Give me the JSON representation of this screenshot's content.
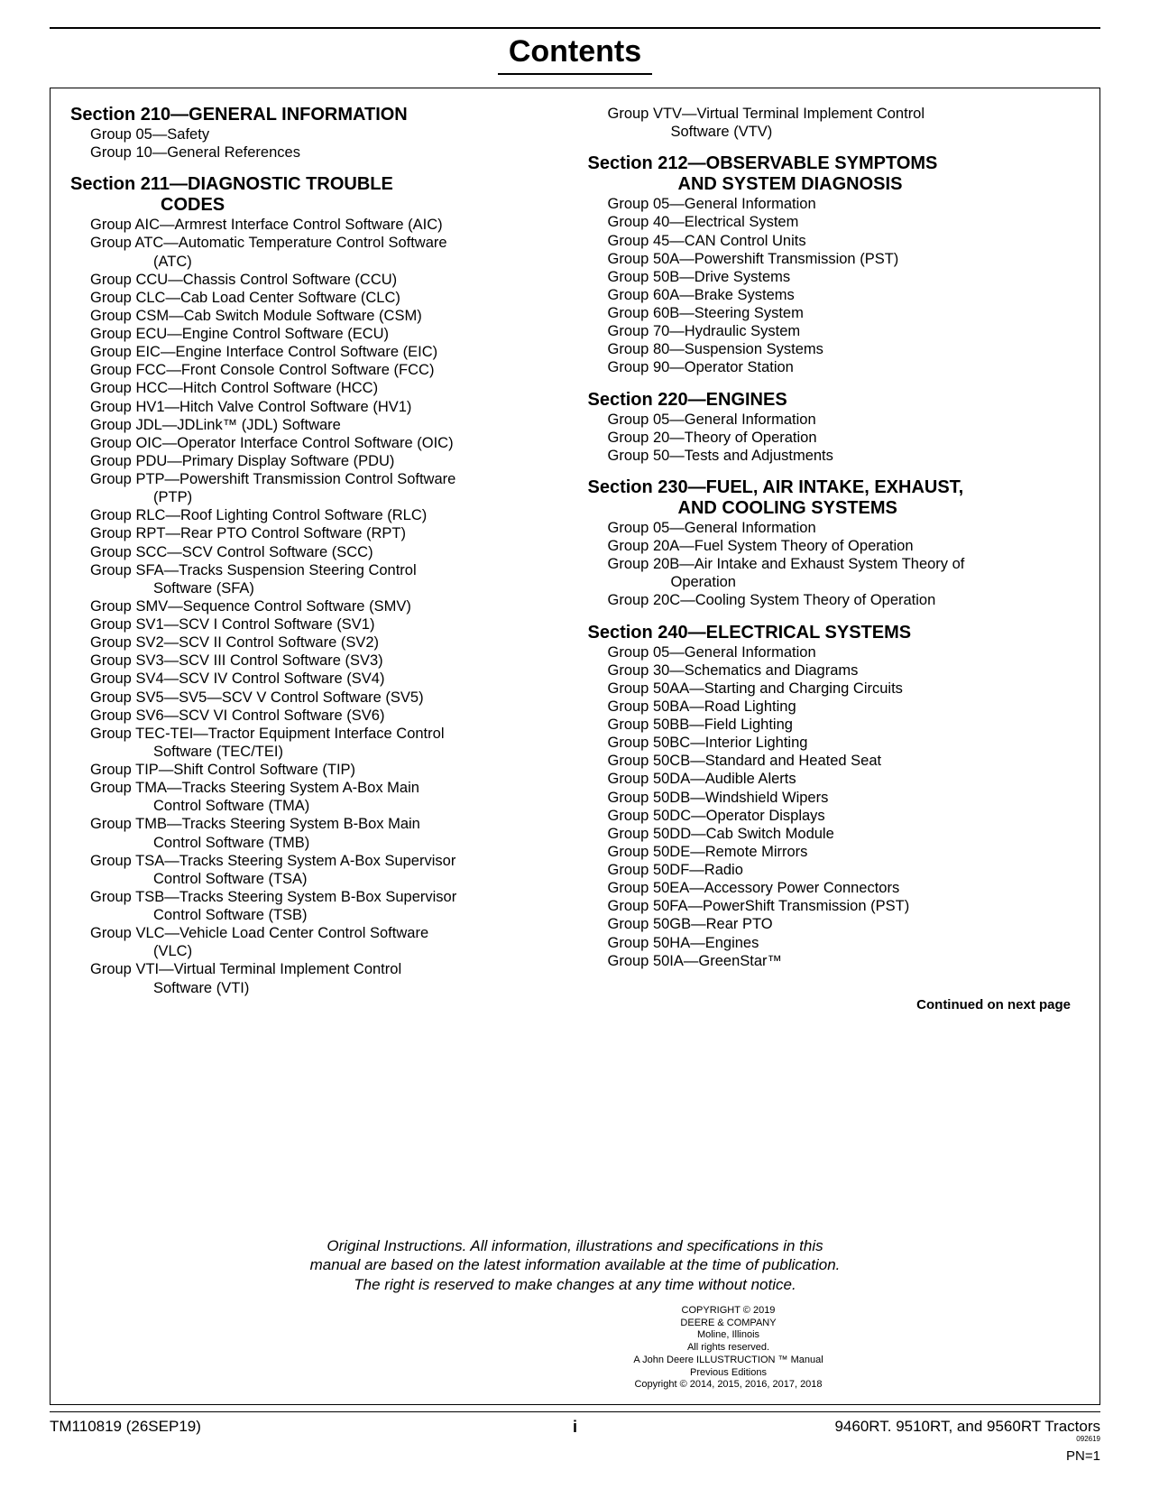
{
  "title": "Contents",
  "left": {
    "s210": {
      "head": "Section 210—GENERAL INFORMATION",
      "g": [
        "Group 05—Safety",
        "Group 10—General References"
      ]
    },
    "s211": {
      "head1": "Section 211—DIAGNOSTIC TROUBLE",
      "head2": "CODES",
      "g": [
        "Group AIC—Armrest Interface Control Software (AIC)",
        "Group ATC—Automatic Temperature Control Software",
        "(ATC)",
        "Group CCU—Chassis Control Software (CCU)",
        "Group CLC—Cab Load Center Software (CLC)",
        "Group CSM—Cab Switch Module Software (CSM)",
        "Group ECU—Engine Control Software (ECU)",
        "Group EIC—Engine Interface Control Software (EIC)",
        "Group FCC—Front Console Control Software (FCC)",
        "Group HCC—Hitch Control Software (HCC)",
        "Group HV1—Hitch Valve Control Software (HV1)",
        "Group JDL—JDLink™ (JDL) Software",
        "Group OIC—Operator Interface Control Software (OIC)",
        "Group PDU—Primary Display Software (PDU)",
        "Group PTP—Powershift Transmission Control Software",
        "(PTP)",
        "Group RLC—Roof Lighting Control Software (RLC)",
        "Group RPT—Rear PTO Control Software (RPT)",
        "Group SCC—SCV Control Software (SCC)",
        "Group SFA—Tracks Suspension Steering Control",
        "Software (SFA)",
        "Group SMV—Sequence Control Software (SMV)",
        "Group SV1—SCV I Control Software (SV1)",
        "Group SV2—SCV II Control Software (SV2)",
        "Group SV3—SCV III Control Software (SV3)",
        "Group SV4—SCV IV Control Software (SV4)",
        "Group SV5—SV5—SCV V Control Software (SV5)",
        "Group SV6—SCV VI Control Software (SV6)",
        "Group TEC-TEI—Tractor Equipment Interface Control",
        "Software (TEC/TEI)",
        "Group TIP—Shift Control Software (TIP)",
        "Group TMA—Tracks Steering System A-Box Main",
        "Control Software (TMA)",
        "Group TMB—Tracks Steering System B-Box Main",
        "Control Software (TMB)",
        "Group TSA—Tracks Steering System A-Box Supervisor",
        "Control Software (TSA)",
        "Group TSB—Tracks Steering System B-Box Supervisor",
        "Control Software (TSB)",
        "Group VLC—Vehicle Load Center Control Software",
        "(VLC)",
        "Group VTI—Virtual Terminal Implement Control",
        "Software (VTI)"
      ],
      "cont_indices": [
        2,
        15,
        20,
        29,
        32,
        34,
        36,
        38,
        40,
        42
      ]
    }
  },
  "right": {
    "vtv": {
      "g": [
        "Group VTV—Virtual Terminal Implement Control",
        "Software (VTV)"
      ],
      "cont_indices": [
        1
      ]
    },
    "s212": {
      "head1": "Section 212—OBSERVABLE SYMPTOMS",
      "head2": "AND SYSTEM DIAGNOSIS",
      "g": [
        "Group 05—General Information",
        "Group 40—Electrical System",
        "Group 45—CAN Control Units",
        "Group 50A—Powershift Transmission (PST)",
        "Group 50B—Drive Systems",
        "Group 60A—Brake Systems",
        "Group 60B—Steering System",
        "Group 70—Hydraulic System",
        "Group 80—Suspension Systems",
        "Group 90—Operator Station"
      ]
    },
    "s220": {
      "head": "Section 220—ENGINES",
      "g": [
        "Group 05—General Information",
        "Group 20—Theory of Operation",
        "Group 50—Tests and Adjustments"
      ]
    },
    "s230": {
      "head1": "Section 230—FUEL, AIR INTAKE, EXHAUST,",
      "head2": "AND COOLING SYSTEMS",
      "g": [
        "Group 05—General Information",
        "Group 20A—Fuel System Theory of Operation",
        "Group 20B—Air Intake and Exhaust System Theory of",
        "Operation",
        "Group 20C—Cooling System Theory of Operation"
      ],
      "cont_indices": [
        3
      ]
    },
    "s240": {
      "head": "Section 240—ELECTRICAL SYSTEMS",
      "g": [
        "Group 05—General Information",
        "Group 30—Schematics and Diagrams",
        "Group 50AA—Starting and Charging Circuits",
        "Group 50BA—Road Lighting",
        "Group 50BB—Field Lighting",
        "Group 50BC—Interior Lighting",
        "Group 50CB—Standard and Heated Seat",
        "Group 50DA—Audible Alerts",
        "Group 50DB—Windshield Wipers",
        "Group 50DC—Operator Displays",
        "Group 50DD—Cab Switch Module",
        "Group 50DE—Remote Mirrors",
        "Group 50DF—Radio",
        "Group 50EA—Accessory Power Connectors",
        "Group 50FA—PowerShift Transmission (PST)",
        "Group 50GB—Rear PTO",
        "Group 50HA—Engines",
        "Group 50IA—GreenStar™"
      ]
    }
  },
  "continued": "Continued on next page",
  "legal": {
    "l1": "Original Instructions. All information, illustrations and specifications in this",
    "l2": "manual are based on the latest information available at the time of publication.",
    "l3": "The right is reserved to make changes at any time without notice."
  },
  "copyright": [
    "COPYRIGHT © 2019",
    "DEERE & COMPANY",
    "Moline, Illinois",
    "All rights reserved.",
    "A John Deere ILLUSTRUCTION ™ Manual",
    "Previous Editions",
    "Copyright © 2014, 2015, 2016, 2017, 2018"
  ],
  "footer": {
    "left": "TM110819 (26SEP19)",
    "center": "i",
    "right_main": "9460RT. 9510RT, and 9560RT Tractors",
    "right_tiny": "092619",
    "right_pn": "PN=1"
  }
}
